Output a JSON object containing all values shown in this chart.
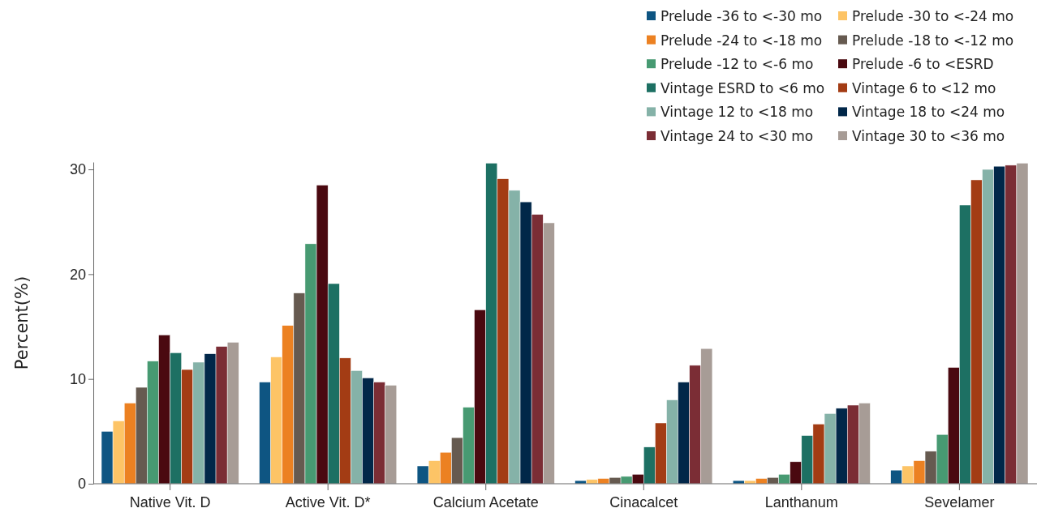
{
  "chart_data": {
    "type": "bar",
    "ylabel": "Percent(%)",
    "categories": [
      "Native Vit. D",
      "Active Vit. D*",
      "Calcium Acetate",
      "Cinacalcet",
      "Lanthanum",
      "Sevelamer"
    ],
    "ylim": [
      0,
      30.7
    ],
    "yticks": [
      0,
      10,
      20,
      30
    ],
    "grid": false,
    "legend": "top right",
    "series": [
      {
        "name": "Prelude -36 to <-30 mo",
        "color": "#0e5582",
        "values": [
          5.0,
          9.7,
          1.7,
          0.3,
          0.3,
          1.3
        ]
      },
      {
        "name": "Prelude -30 to <-24 mo",
        "color": "#fdc466",
        "values": [
          6.0,
          12.1,
          2.2,
          0.4,
          0.3,
          1.7
        ]
      },
      {
        "name": "Prelude -24 to <-18 mo",
        "color": "#ec8122",
        "values": [
          7.7,
          15.1,
          3.0,
          0.5,
          0.5,
          2.2
        ]
      },
      {
        "name": "Prelude -18 to <-12 mo",
        "color": "#665a50",
        "values": [
          9.2,
          18.2,
          4.4,
          0.6,
          0.6,
          3.1
        ]
      },
      {
        "name": "Prelude -12 to <-6 mo",
        "color": "#479a72",
        "values": [
          11.7,
          22.9,
          7.3,
          0.7,
          0.9,
          4.7
        ]
      },
      {
        "name": "Prelude -6 to <ESRD",
        "color": "#4a0910",
        "values": [
          14.2,
          28.5,
          16.6,
          0.9,
          2.1,
          11.1
        ]
      },
      {
        "name": "Vintage ESRD to <6 mo",
        "color": "#1d7063",
        "values": [
          12.5,
          19.1,
          30.6,
          3.5,
          4.6,
          26.6
        ]
      },
      {
        "name": "Vintage 6 to <12 mo",
        "color": "#a33c14",
        "values": [
          10.9,
          12.0,
          29.1,
          5.8,
          5.7,
          29.0
        ]
      },
      {
        "name": "Vintage 12 to <18 mo",
        "color": "#85b2a8",
        "values": [
          11.6,
          10.8,
          28.0,
          8.0,
          6.7,
          30.0
        ]
      },
      {
        "name": "Vintage 18 to <24 mo",
        "color": "#012749",
        "values": [
          12.4,
          10.1,
          26.9,
          9.7,
          7.2,
          30.3
        ]
      },
      {
        "name": "Vintage 24 to <30 mo",
        "color": "#7b2d35",
        "values": [
          13.1,
          9.7,
          25.7,
          11.3,
          7.5,
          30.4
        ]
      },
      {
        "name": "Vintage 30 to <36 mo",
        "color": "#a79c96",
        "values": [
          13.5,
          9.4,
          24.9,
          12.9,
          7.7,
          30.6
        ]
      }
    ]
  }
}
